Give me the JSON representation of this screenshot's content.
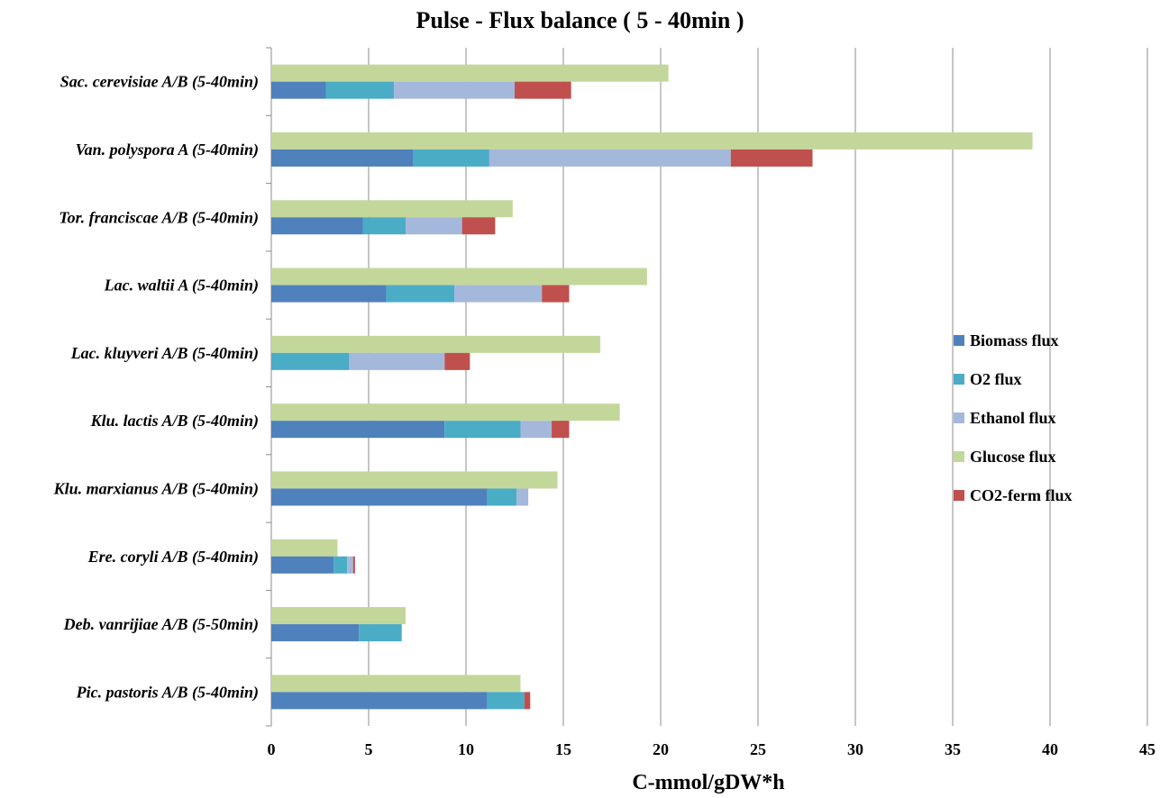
{
  "chart_data": {
    "type": "bar",
    "orientation": "horizontal",
    "title": "Pulse - Flux balance ( 5 - 40min )",
    "xlabel": "C-mmol/gDW*h",
    "ylabel": "",
    "xlim": [
      0,
      45
    ],
    "xticks": [
      0,
      5,
      10,
      15,
      20,
      25,
      30,
      35,
      40,
      45
    ],
    "grid": "vertical",
    "legend_position": "right",
    "categories": [
      "Sac. cerevisiae A/B (5-40min)",
      "Van. polyspora A (5-40min)",
      "Tor. franciscae A/B (5-40min)",
      "Lac. waltii A (5-40min)",
      "Lac. kluyveri A/B (5-40min)",
      "Klu. lactis A/B (5-40min)",
      "Klu. marxianus A/B (5-40min)",
      "Ere. coryli A/B (5-40min)",
      "Deb. vanrijiae A/B (5-50min)",
      "Pic. pastoris A/B (5-40min)"
    ],
    "glucose": {
      "name": "Glucose flux",
      "color": "#c4d79b",
      "values": [
        20.4,
        39.1,
        12.4,
        19.3,
        16.9,
        17.9,
        14.7,
        3.4,
        6.9,
        12.8
      ]
    },
    "stacked_series": [
      {
        "name": "Biomass flux",
        "color": "#4f81bd",
        "values": [
          2.8,
          7.3,
          4.7,
          5.9,
          0.0,
          8.9,
          11.1,
          3.2,
          4.5,
          11.1
        ]
      },
      {
        "name": "O2 flux",
        "color": "#4bacc6",
        "values": [
          3.5,
          3.9,
          2.2,
          3.5,
          4.0,
          3.9,
          1.5,
          0.7,
          2.2,
          1.9
        ]
      },
      {
        "name": "Ethanol flux",
        "color": "#a4b8dc",
        "values": [
          6.2,
          12.4,
          2.9,
          4.5,
          4.9,
          1.6,
          0.6,
          0.3,
          0.0,
          0.0
        ]
      },
      {
        "name": "CO2-ferm flux",
        "color": "#c0504d",
        "values": [
          2.9,
          4.2,
          1.7,
          1.4,
          1.3,
          0.9,
          0.0,
          0.1,
          0.0,
          0.3
        ]
      }
    ],
    "legend": [
      {
        "name": "Biomass flux",
        "color": "#4f81bd"
      },
      {
        "name": "O2 flux",
        "color": "#4bacc6"
      },
      {
        "name": "Ethanol flux",
        "color": "#a4b8dc"
      },
      {
        "name": "Glucose flux",
        "color": "#c4d79b"
      },
      {
        "name": "CO2-ferm flux",
        "color": "#c0504d"
      }
    ]
  }
}
